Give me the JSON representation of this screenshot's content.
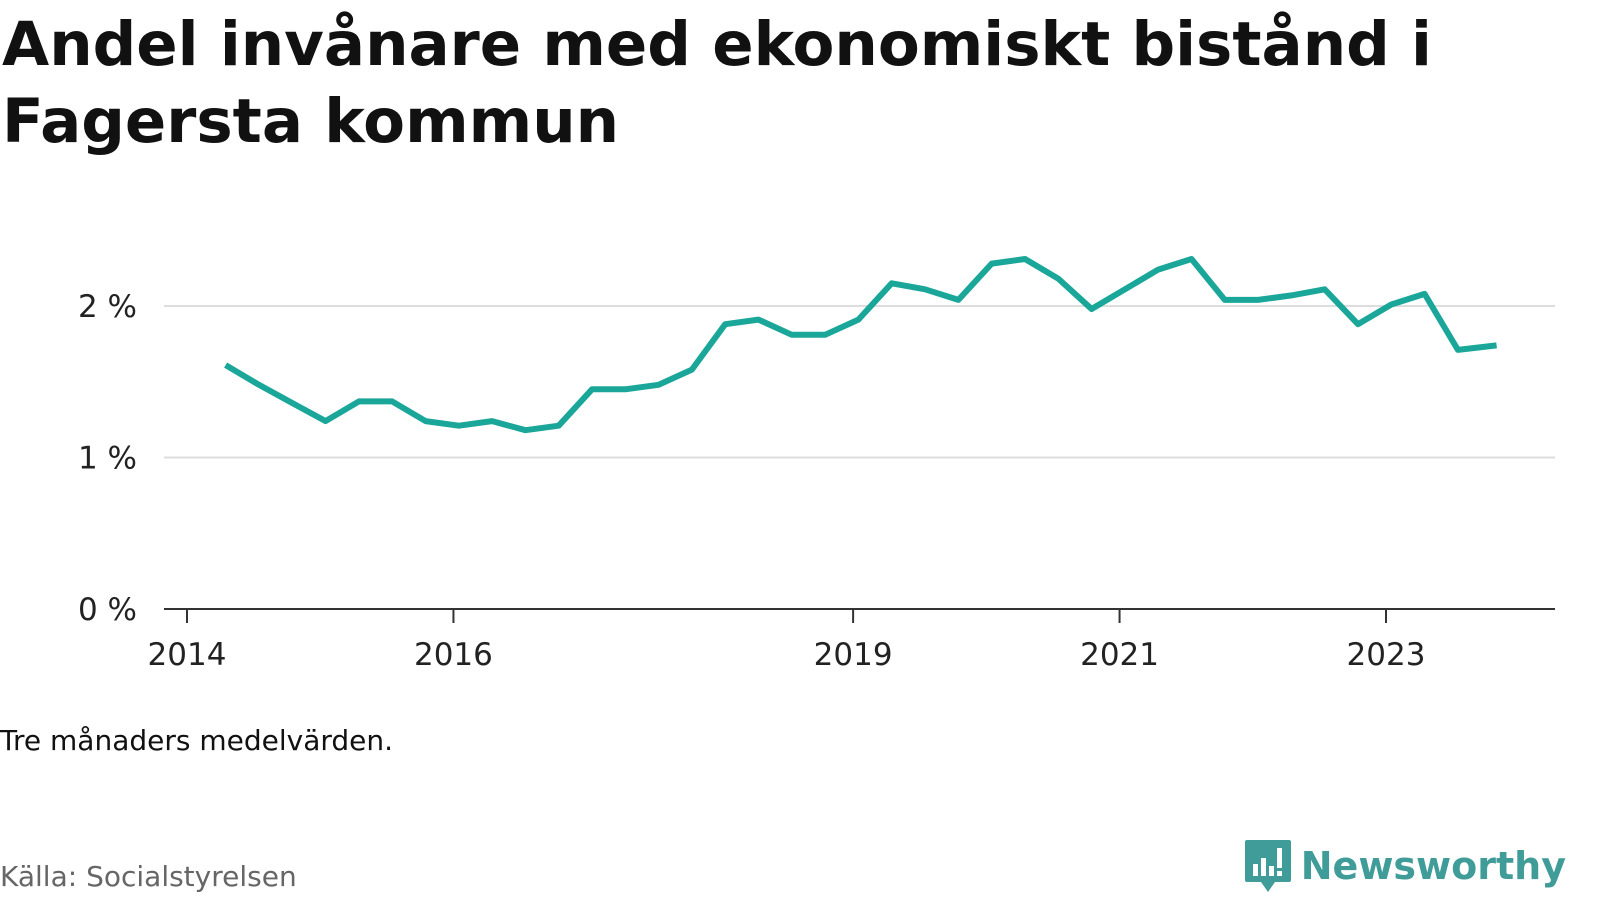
{
  "header": {
    "title": "Andel invånare med ekonomiskt bistånd i Fagersta kommun"
  },
  "chart_data": {
    "type": "line",
    "title": "Andel invånare med ekonomiskt bistånd i Fagersta kommun",
    "xlabel": "",
    "ylabel": "",
    "ylim": [
      0,
      2.5
    ],
    "yticks": [
      {
        "value": 0,
        "label": "0 %"
      },
      {
        "value": 1,
        "label": "1 %"
      },
      {
        "value": 2,
        "label": "2 %"
      }
    ],
    "xlim": [
      2014.0,
      2024.3
    ],
    "xticks": [
      {
        "value": 2014,
        "label": "2014"
      },
      {
        "value": 2016,
        "label": "2016"
      },
      {
        "value": 2019,
        "label": "2019"
      },
      {
        "value": 2021,
        "label": "2021"
      },
      {
        "value": 2023,
        "label": "2023"
      }
    ],
    "grid": true,
    "line_color": "#1aa79a",
    "series": [
      {
        "name": "",
        "x": [
          2014.29,
          2014.54,
          2014.79,
          2015.04,
          2015.29,
          2015.54,
          2015.79,
          2016.04,
          2016.29,
          2016.54,
          2016.79,
          2017.04,
          2017.29,
          2017.54,
          2017.79,
          2018.04,
          2018.29,
          2018.54,
          2018.79,
          2019.04,
          2019.29,
          2019.54,
          2019.79,
          2020.04,
          2020.29,
          2020.54,
          2020.79,
          2021.04,
          2021.29,
          2021.54,
          2021.79,
          2022.04,
          2022.29,
          2022.54,
          2022.79,
          2023.04,
          2023.29,
          2023.54,
          2023.83
        ],
        "values": [
          1.61,
          1.48,
          1.36,
          1.24,
          1.37,
          1.37,
          1.24,
          1.21,
          1.24,
          1.18,
          1.21,
          1.45,
          1.45,
          1.48,
          1.58,
          1.88,
          1.91,
          1.81,
          1.81,
          1.91,
          2.15,
          2.11,
          2.04,
          2.28,
          2.31,
          2.18,
          1.98,
          2.11,
          2.24,
          2.31,
          2.04,
          2.04,
          2.07,
          2.11,
          1.88,
          2.01,
          2.08,
          1.71,
          1.74
        ]
      }
    ]
  },
  "footer": {
    "note": "Tre månaders medelvärden.",
    "source": "Källa: Socialstyrelsen",
    "brand": "Newsworthy",
    "brand_color": "#3f9c98",
    "brand_icon": "bar-chart-speech-bubble-icon"
  }
}
